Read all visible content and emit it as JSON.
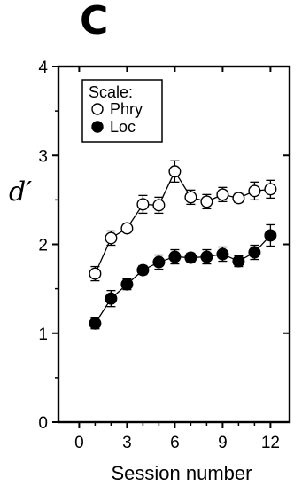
{
  "panel_label": "C",
  "chart_data": {
    "type": "line",
    "title": "",
    "xlabel": "Session number",
    "ylabel": "d′",
    "xlim": [
      -1.3,
      13.2
    ],
    "ylim": [
      0,
      4
    ],
    "xticks": [
      0,
      3,
      6,
      9,
      12
    ],
    "yticks": [
      0,
      1,
      2,
      3,
      4
    ],
    "grid": false,
    "legend": {
      "title": "Scale:",
      "placement": "top-left"
    },
    "x": [
      1,
      2,
      3,
      4,
      5,
      6,
      7,
      8,
      9,
      10,
      11,
      12
    ],
    "series": [
      {
        "name": "Phry",
        "marker": "open-circle",
        "color": "#000000",
        "values": [
          1.67,
          2.07,
          2.18,
          2.45,
          2.44,
          2.82,
          2.53,
          2.48,
          2.56,
          2.52,
          2.6,
          2.62
        ],
        "errors": [
          0.08,
          0.08,
          0.04,
          0.1,
          0.09,
          0.12,
          0.08,
          0.08,
          0.08,
          0.05,
          0.1,
          0.1
        ]
      },
      {
        "name": "Loc",
        "marker": "filled-circle",
        "color": "#000000",
        "values": [
          1.11,
          1.39,
          1.55,
          1.71,
          1.8,
          1.86,
          1.85,
          1.86,
          1.89,
          1.81,
          1.91,
          2.1
        ],
        "errors": [
          0.06,
          0.09,
          0.06,
          0.05,
          0.08,
          0.08,
          0.05,
          0.08,
          0.08,
          0.06,
          0.08,
          0.12
        ]
      }
    ]
  }
}
